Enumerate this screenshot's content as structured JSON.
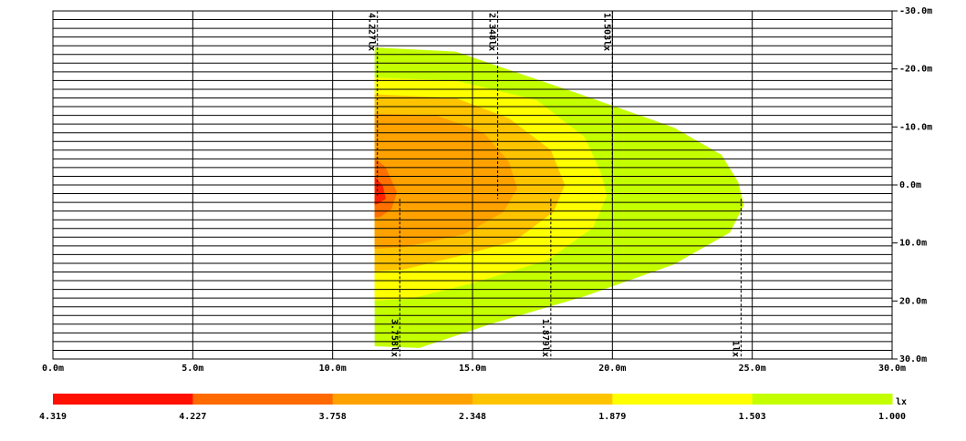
{
  "chart_data": {
    "type": "isolux",
    "xlim": [
      0,
      30
    ],
    "ylim": [
      30,
      -30
    ],
    "xticks": [
      {
        "value": 0,
        "label": "0.0m"
      },
      {
        "value": 5,
        "label": "5.0m"
      },
      {
        "value": 10,
        "label": "10.0m"
      },
      {
        "value": 15,
        "label": "15.0m"
      },
      {
        "value": 20,
        "label": "20.0m"
      },
      {
        "value": 25,
        "label": "25.0m"
      },
      {
        "value": 30,
        "label": "30.0m"
      }
    ],
    "yticks": [
      {
        "value": -30,
        "label": "-30.0m"
      },
      {
        "value": -20,
        "label": "-20.0m"
      },
      {
        "value": -10,
        "label": "-10.0m"
      },
      {
        "value": 0,
        "label": "0.0m"
      },
      {
        "value": 10,
        "label": "10.0m"
      },
      {
        "value": 20,
        "label": "20.0m"
      },
      {
        "value": 30,
        "label": "30.0m"
      }
    ],
    "grid": true,
    "series": [
      {
        "color": "#c4ff00",
        "x": [
          11.5,
          14.4,
          19,
          22.2,
          23.9,
          24.5,
          24.7,
          24.2,
          22.2,
          19,
          15.7,
          13.1,
          11.5
        ],
        "y": [
          -23.7,
          -23,
          -15.4,
          -9.9,
          -5.2,
          -0.5,
          3.5,
          8.2,
          13.7,
          19.2,
          23.9,
          28.1,
          27.8
        ]
      },
      {
        "color": "#ffff00",
        "x": [
          11.5,
          14.4,
          17.3,
          19,
          19.6,
          19.8,
          19.3,
          17.7,
          15.1,
          12.8,
          11.5
        ],
        "y": [
          -18.5,
          -18,
          -14.6,
          -8.3,
          -2,
          1.9,
          7.4,
          12.9,
          16.8,
          19.6,
          19.9
        ]
      },
      {
        "color": "#ffc400",
        "x": [
          11.5,
          14.4,
          16.3,
          17.8,
          18.3,
          17.9,
          16.5,
          14.4,
          12.5,
          11.5
        ],
        "y": [
          -15.6,
          -15,
          -11.5,
          -6,
          0,
          4.6,
          9.7,
          12.4,
          14.6,
          14.9
        ]
      },
      {
        "color": "#ffa200",
        "x": [
          11.5,
          13.7,
          15.4,
          16.3,
          16.6,
          16.1,
          14.7,
          12.6,
          11.5
        ],
        "y": [
          -12.3,
          -12,
          -9,
          -4,
          0.6,
          4.7,
          8.5,
          10.7,
          11
        ]
      },
      {
        "color": "#ff7000",
        "x": [
          11.5,
          11.9,
          12.3,
          12.1,
          11.7,
          11.5
        ],
        "y": [
          -4.7,
          -3,
          1.3,
          4.2,
          5.5,
          5.6
        ]
      },
      {
        "color": "#ff2000",
        "x": [
          11.5,
          11.8,
          11.9,
          11.6,
          11.5
        ],
        "y": [
          -1.5,
          0.2,
          2.4,
          3.3,
          3.4
        ]
      }
    ],
    "annotations": [
      {
        "text": "4.227lx",
        "x": 11.6,
        "y": 1.8,
        "side": "top"
      },
      {
        "text": "2.348lx",
        "x": 15.9,
        "y": 2.4,
        "side": "top"
      },
      {
        "text": "1.503lx",
        "x": 20,
        "y": 2.6,
        "side": "top"
      },
      {
        "text": "3.758lx",
        "x": 12.4,
        "y": 2.4,
        "side": "bottom"
      },
      {
        "text": "1.879lx",
        "x": 17.8,
        "y": 2.4,
        "side": "bottom"
      },
      {
        "text": "1lx",
        "x": 24.6,
        "y": 2.4,
        "side": "bottom"
      }
    ],
    "colorbar": {
      "ticks": [
        4.319,
        4.227,
        3.758,
        2.348,
        1.879,
        1.503,
        {
          "value": 1,
          "label": "1.000"
        }
      ],
      "colors": [
        "#ff1000",
        "#ff6a00",
        "#ffa200",
        "#ffc400",
        "#ffff00",
        "#c4ff00"
      ],
      "unit": "lx"
    }
  }
}
